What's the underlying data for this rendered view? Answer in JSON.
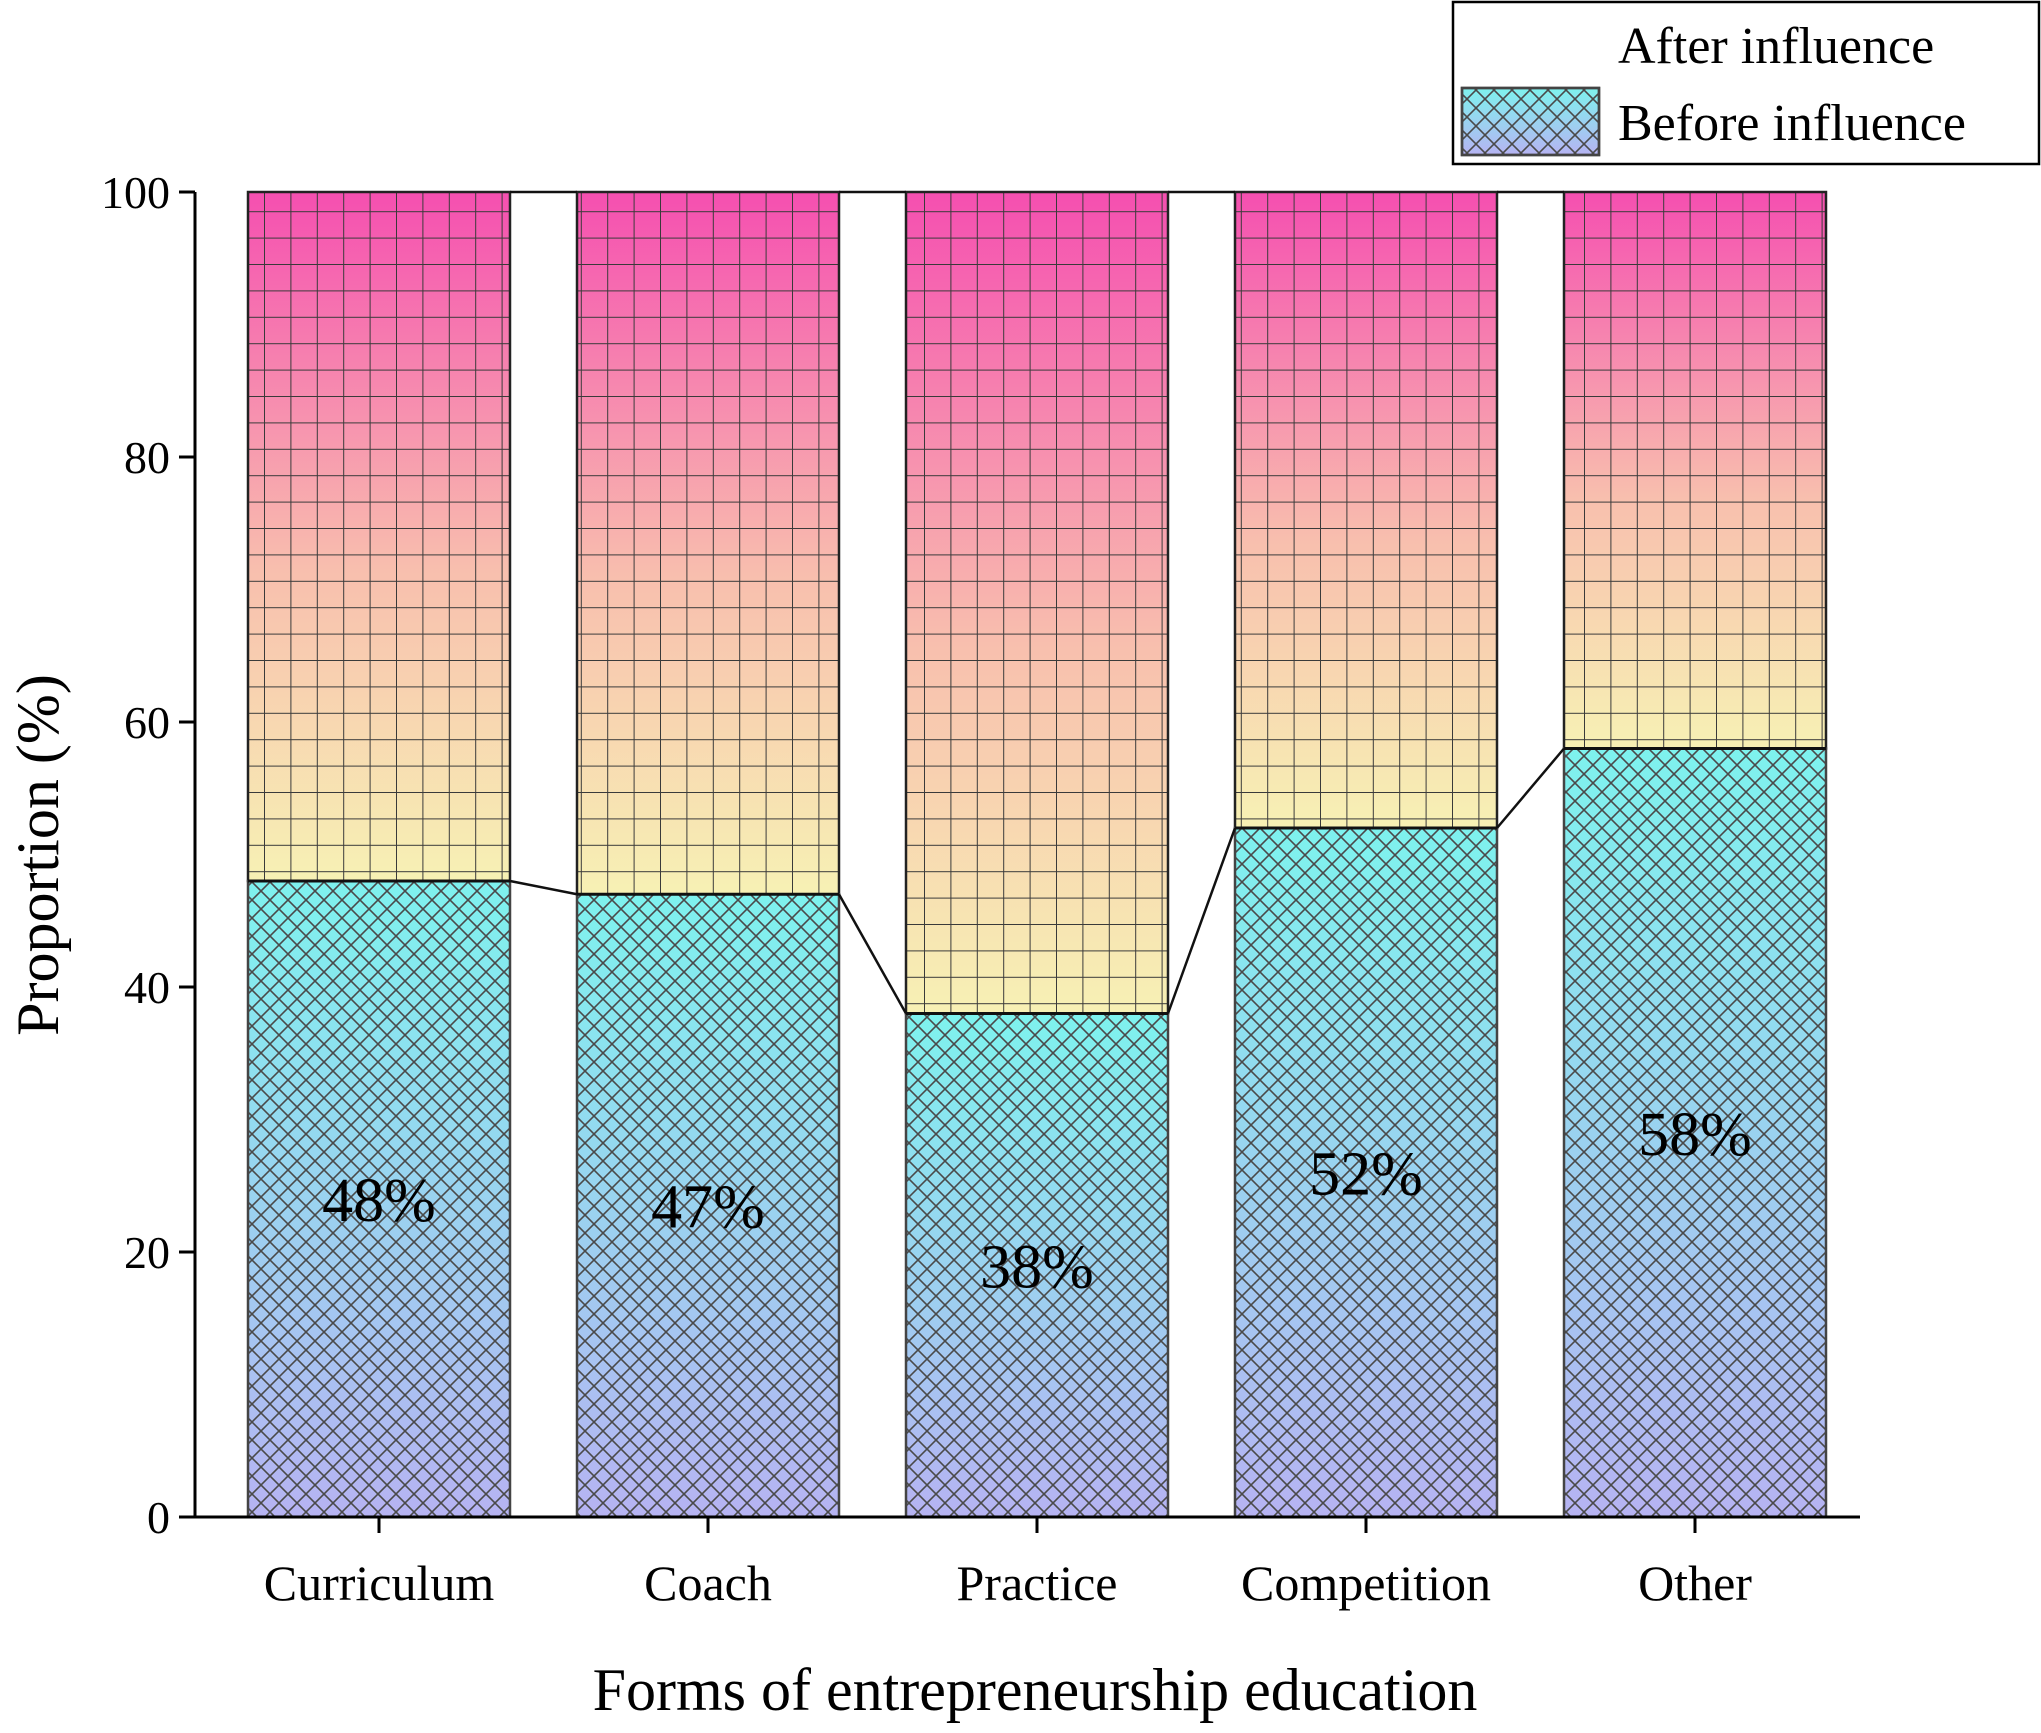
{
  "chart_data": {
    "type": "bar",
    "stacked": true,
    "normalized_percent": true,
    "title": "",
    "xlabel": "Forms of entrepreneurship education",
    "ylabel": "Proportion (%)",
    "ylim": [
      0,
      100
    ],
    "yticks": [
      0,
      20,
      40,
      60,
      80,
      100
    ],
    "categories": [
      "Curriculum",
      "Coach",
      "Practice",
      "Competition",
      "Other"
    ],
    "series": [
      {
        "name": "Before influence",
        "values": [
          48,
          47,
          38,
          52,
          58
        ]
      },
      {
        "name": "After influence",
        "values": [
          52,
          53,
          62,
          48,
          42
        ]
      }
    ],
    "data_labels": [
      "48%",
      "47%",
      "38%",
      "52%",
      "58%"
    ],
    "legend": {
      "position": "top-right",
      "entries": [
        "After influence",
        "Before influence"
      ]
    },
    "connector_lines": true,
    "colors": {
      "before_top": "#7ef2ee",
      "before_bottom": "#b6b3f2",
      "after_top": "#f54fb0",
      "after_mid": "#f8bfae",
      "after_bottom": "#f7f1b4",
      "hatch": "#4a4a4a"
    }
  }
}
